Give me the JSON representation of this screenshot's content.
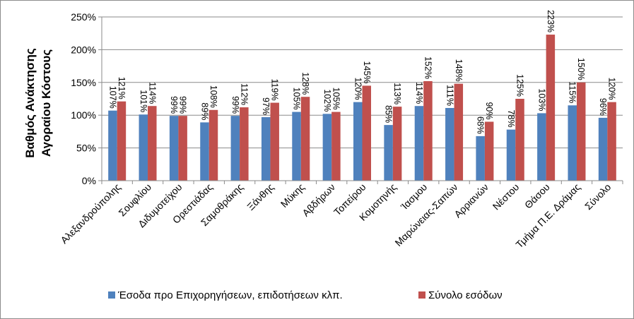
{
  "chart_data": {
    "type": "bar",
    "categories": [
      "Αλεξανδρούπολης",
      "Σουφλίου",
      "Διδυμοτείχου",
      "Ορεστιάδας",
      "Σαμοθράκης",
      "Ξάνθης",
      "Μύκης",
      "Αβδήρων",
      "Τοπείρου",
      "Κομοτηνής",
      "Ίασμου",
      "Μαρώνειας-Σαπών",
      "Αρριανών",
      "Νέστου",
      "Θάσου",
      "Τμήμα Π.Ε. Δράμας",
      "Σύνολο"
    ],
    "series": [
      {
        "name": "Έσοδα προ Επιχορηγήσεων, επιδοτήσεων κλπ.",
        "values": [
          107,
          101,
          99,
          89,
          99,
          97,
          105,
          102,
          120,
          85,
          114,
          111,
          68,
          78,
          103,
          115,
          96
        ],
        "labels": [
          "107%",
          "101%",
          "99%",
          "89%",
          "99%",
          "97%",
          "105%",
          "102%",
          "120%",
          "85%",
          "114%",
          "111%",
          "68%",
          "78%",
          "103%",
          "115%",
          "96%"
        ],
        "color": "#4f81bd"
      },
      {
        "name": "Σύνολο εσόδων",
        "values": [
          121,
          114,
          99,
          108,
          112,
          119,
          128,
          105,
          145,
          113,
          152,
          148,
          90,
          125,
          223,
          150,
          120
        ],
        "labels": [
          "121%",
          "114%",
          "99%",
          "108%",
          "112%",
          "119%",
          "128%",
          "105%",
          "145%",
          "113%",
          "152%",
          "148%",
          "90%",
          "125%",
          "223%",
          "150%",
          "120%"
        ],
        "color": "#c0504d"
      }
    ],
    "ylabel": "Βαθμός Ανάκτησης Αγοραίου Κόστους",
    "ylabel_lines": [
      "Βαθμός Ανάκτησης",
      "Αγοραίου Κόστους"
    ],
    "yticks": [
      "0%",
      "50%",
      "100%",
      "150%",
      "200%",
      "250%"
    ],
    "ylim": [
      0,
      250
    ],
    "grid": true,
    "legend": "bottom"
  }
}
